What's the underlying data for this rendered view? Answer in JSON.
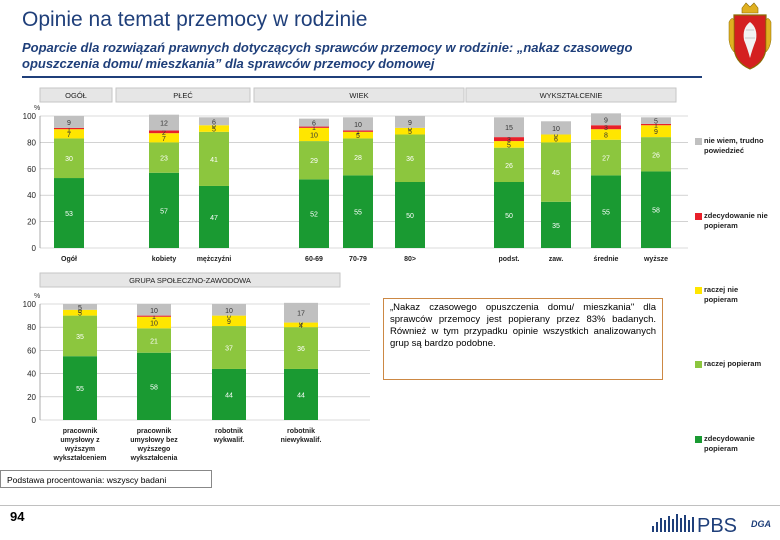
{
  "page": {
    "title": "Opinie na temat przemocy w rodzinie",
    "subtitle": "Poparcie dla rozwiązań prawnych dotyczących sprawców przemocy w rodzinie: „nakaz czasowego opuszczenia domu/ mieszkania” dla sprawców przemocy domowej",
    "page_number": "94",
    "basis_note": "Podstawa procentowania: wszyscy badani",
    "note": "„Nakaz czasowego opuszczenia domu/ mieszkania\" dla sprawców przemocy jest popierany przez 83% badanych. Również w tym przypadku opinie wszystkich analizowanych grup są bardzo podobne.",
    "logo_text": "PBS",
    "logo_sub": "DGA",
    "colors": {
      "title": "#1f3f7a",
      "dont_know": "#c0c0c0",
      "definitely_not": "#e8202a",
      "rather_not": "#ffe600",
      "rather_support": "#8cc63e",
      "definitely_support": "#1a9a32"
    }
  },
  "chart_data": [
    {
      "type": "bar",
      "stacked": true,
      "y_unit": "%",
      "ylim": [
        0,
        100
      ],
      "yticks": [
        0,
        20,
        40,
        60,
        80,
        100
      ],
      "group_headers": [
        "OGÓŁ",
        "PŁEĆ",
        "WIEK",
        "WYKSZTAŁCENIE"
      ],
      "categories": [
        "Ogół",
        "kobiety",
        "mężczyźni",
        "60-69",
        "70-79",
        "80>",
        "podst.",
        "zaw.",
        "średnie",
        "wyższe"
      ],
      "series": [
        {
          "name": "zdecydowanie popieram",
          "values": [
            53,
            57,
            47,
            52,
            55,
            50,
            50,
            35,
            55,
            58
          ]
        },
        {
          "name": "raczej popieram",
          "values": [
            30,
            23,
            41,
            29,
            28,
            36,
            26,
            45,
            27,
            26
          ]
        },
        {
          "name": "raczej nie popieram",
          "values": [
            7,
            7,
            5,
            10,
            5,
            5,
            5,
            6,
            8,
            9
          ]
        },
        {
          "name": "zdecydowanie nie popieram",
          "values": [
            1,
            2,
            0,
            1,
            1,
            0,
            3,
            0,
            3,
            1
          ]
        },
        {
          "name": "nie wiem, trudno powiedzieć",
          "values": [
            9,
            12,
            6,
            6,
            10,
            9,
            15,
            10,
            9,
            5
          ]
        }
      ]
    },
    {
      "type": "bar",
      "stacked": true,
      "y_unit": "%",
      "ylim": [
        0,
        100
      ],
      "yticks": [
        0,
        20,
        40,
        60,
        80,
        100
      ],
      "group_headers": [
        "GRUPA SPOŁECZNO-ZAWODOWA"
      ],
      "categories": [
        "pracownik umysłowy z wyższym wykształceniem",
        "pracownik umysłowy bez wyższego wykształcenia",
        "robotnik wykwalif.",
        "robotnik niewykwalif."
      ],
      "series": [
        {
          "name": "zdecydowanie popieram",
          "values": [
            55,
            58,
            44,
            44
          ]
        },
        {
          "name": "raczej popieram",
          "values": [
            35,
            21,
            37,
            36
          ]
        },
        {
          "name": "raczej nie popieram",
          "values": [
            5,
            10,
            9,
            4
          ]
        },
        {
          "name": "zdecydowanie nie popieram",
          "values": [
            0,
            1,
            0,
            0
          ]
        },
        {
          "name": "nie wiem, trudno powiedzieć",
          "values": [
            5,
            10,
            10,
            17
          ]
        }
      ]
    }
  ],
  "legend": [
    {
      "label": "nie wiem, trudno powiedzieć",
      "color": "#c0c0c0"
    },
    {
      "label": "zdecydowanie nie popieram",
      "color": "#e8202a"
    },
    {
      "label": "raczej nie popieram",
      "color": "#ffe600"
    },
    {
      "label": "raczej popieram",
      "color": "#8cc63e"
    },
    {
      "label": "zdecydowanie popieram",
      "color": "#1a9a32"
    }
  ]
}
